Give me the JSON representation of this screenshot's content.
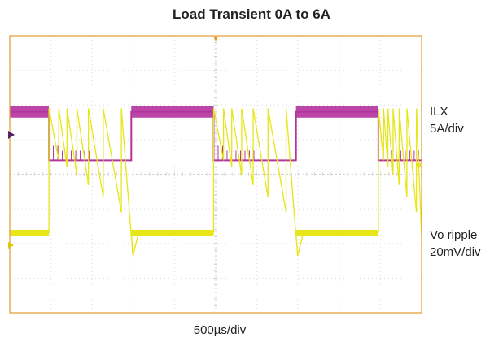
{
  "title": "Load Transient 0A to 6A",
  "timebase": "500µs/div",
  "channels": {
    "ilx": {
      "name": "ILX",
      "scale": "5A/div",
      "color": "#b3339f"
    },
    "vo": {
      "name": "Vo ripple",
      "scale": "20mV/div",
      "color": "#e6e619"
    }
  },
  "colors": {
    "frame": "#e39a2e",
    "grid": "#dcdcdc",
    "marker_ilx": "#5a1f66",
    "marker_vo": "#e2c400"
  },
  "chart_data": {
    "type": "line",
    "title": "Load Transient 0A to 6A",
    "xlabel": "500µs/div",
    "x_divisions": 10,
    "y_divisions": 8,
    "series": [
      {
        "name": "ILX",
        "scale": "5A/div",
        "x_div": [
          0,
          0.95,
          0.95,
          2.95,
          2.95,
          4.95,
          4.95,
          6.95,
          6.95,
          8.95,
          8.95,
          10
        ],
        "y_div": [
          5.8,
          5.8,
          4.4,
          4.4,
          5.8,
          5.8,
          4.4,
          4.4,
          5.8,
          5.8,
          4.4,
          4.4
        ]
      },
      {
        "name": "Vo ripple",
        "scale": "20mV/div",
        "x_div": [
          0,
          0.95,
          0.95,
          2.95,
          2.95,
          4.95,
          4.95,
          6.95,
          6.95,
          8.95,
          8.95,
          10
        ],
        "y_div": [
          2.3,
          2.3,
          3.8,
          3.8,
          2.3,
          2.3,
          3.8,
          3.8,
          2.3,
          2.3,
          3.8,
          3.8
        ]
      }
    ]
  }
}
